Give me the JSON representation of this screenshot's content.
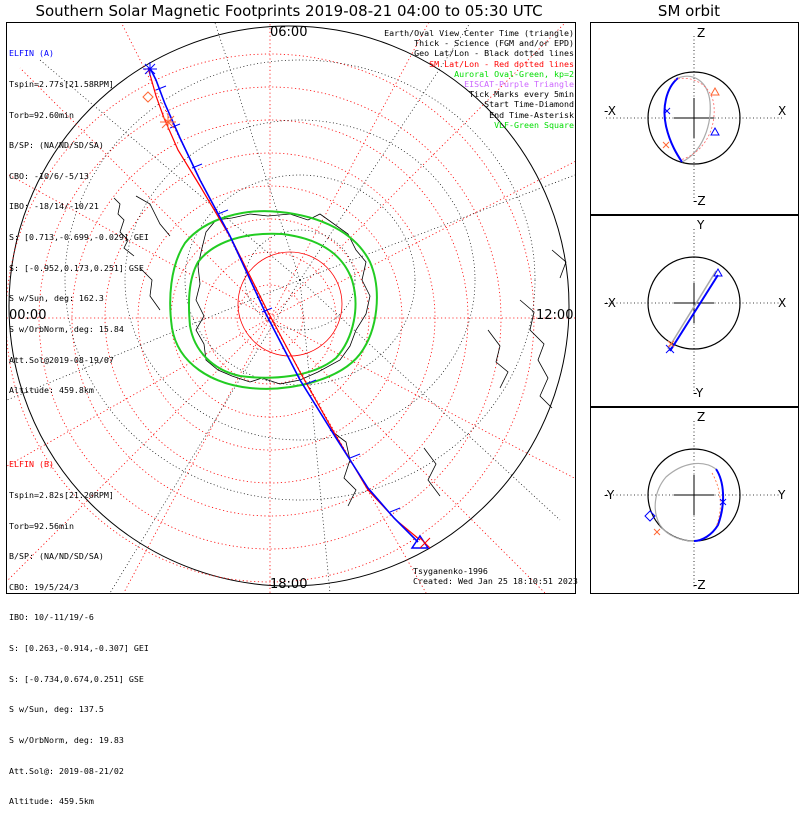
{
  "title": "Southern Solar Magnetic Footprints 2019-08-21 04:00 to 05:30 UTC",
  "sm_title": "SM orbit",
  "clock_labels": {
    "top": "06:00",
    "left": "00:00",
    "right": "12:00",
    "bottom": "18:00"
  },
  "elfin_a": {
    "name": "ELFIN (A)",
    "color": "#0000ff",
    "lines": [
      "Tspin=2.77s[21.58RPM]",
      "Torb=92.60min",
      "B/SP: (NA/ND/SD/SA)",
      "CBO: -10/6/-5/13",
      "IBO: -18/14/-10/21",
      "S: [0.713,-0.699,-0.029] GEI",
      "S: [-0.952,0.173,0.251] GSE",
      "S w/Sun, deg: 162.3",
      "S w/OrbNorm, deg: 15.84",
      "Att.Sol@2019-08-19/07",
      "Altitude: 459.8km"
    ]
  },
  "elfin_b": {
    "name": "ELFIN (B)",
    "color": "#ff0000",
    "lines": [
      "Tspin=2.82s[21.20RPM]",
      "Torb=92.56min",
      "B/SP: (NA/ND/SD/SA)",
      "CBO: 19/5/24/3",
      "IBO: 10/-11/19/-6",
      "S: [0.263,-0.914,-0.307] GEI",
      "S: [-0.734,0.674,0.251] GSE",
      "S w/Sun, deg: 137.5",
      "S w/OrbNorm, deg: 19.83",
      "Att.Sol@: 2019-08-21/02",
      "Altitude: 459.5km"
    ]
  },
  "legend": [
    {
      "text": "Earth/Oval View Center Time (triangle)",
      "color": "#000000"
    },
    {
      "text": "Thick - Science (FGM and/or EPD)",
      "color": "#000000"
    },
    {
      "text": "Geo Lat/Lon - Black dotted lines",
      "color": "#000000"
    },
    {
      "text": "SM Lat/Lon - Red dotted lines",
      "color": "#ff0000"
    },
    {
      "text": "Auroral Oval-Green, kp=2",
      "color": "#00dd00"
    },
    {
      "text": "EISCAT-Purple Triangle",
      "color": "#cc66ff"
    },
    {
      "text": "Tick Marks every 5min",
      "color": "#000000"
    },
    {
      "text": "Start Time-Diamond",
      "color": "#000000"
    },
    {
      "text": "End Time-Asterisk",
      "color": "#000000"
    },
    {
      "text": "VLF-Green Square",
      "color": "#00dd00"
    }
  ],
  "footer": {
    "model": "Tsyganenko-1996",
    "created": "Created: Wed Jan 25 18:10:51 2023"
  },
  "sm_panels": [
    {
      "top": "Z",
      "bottom": "-Z",
      "left": "-X",
      "right": "X"
    },
    {
      "top": "Y",
      "bottom": "-Y",
      "left": "-X",
      "right": "X"
    },
    {
      "top": "Z",
      "bottom": "-Z",
      "left": "-Y",
      "right": "Y"
    }
  ],
  "colors": {
    "elfin_a": "#0000ff",
    "elfin_b": "#ff0000",
    "oval": "#22cc22",
    "sm_grid": "#ff0000",
    "geo_grid": "#000000",
    "orbit_gray": "#aaaaaa"
  }
}
